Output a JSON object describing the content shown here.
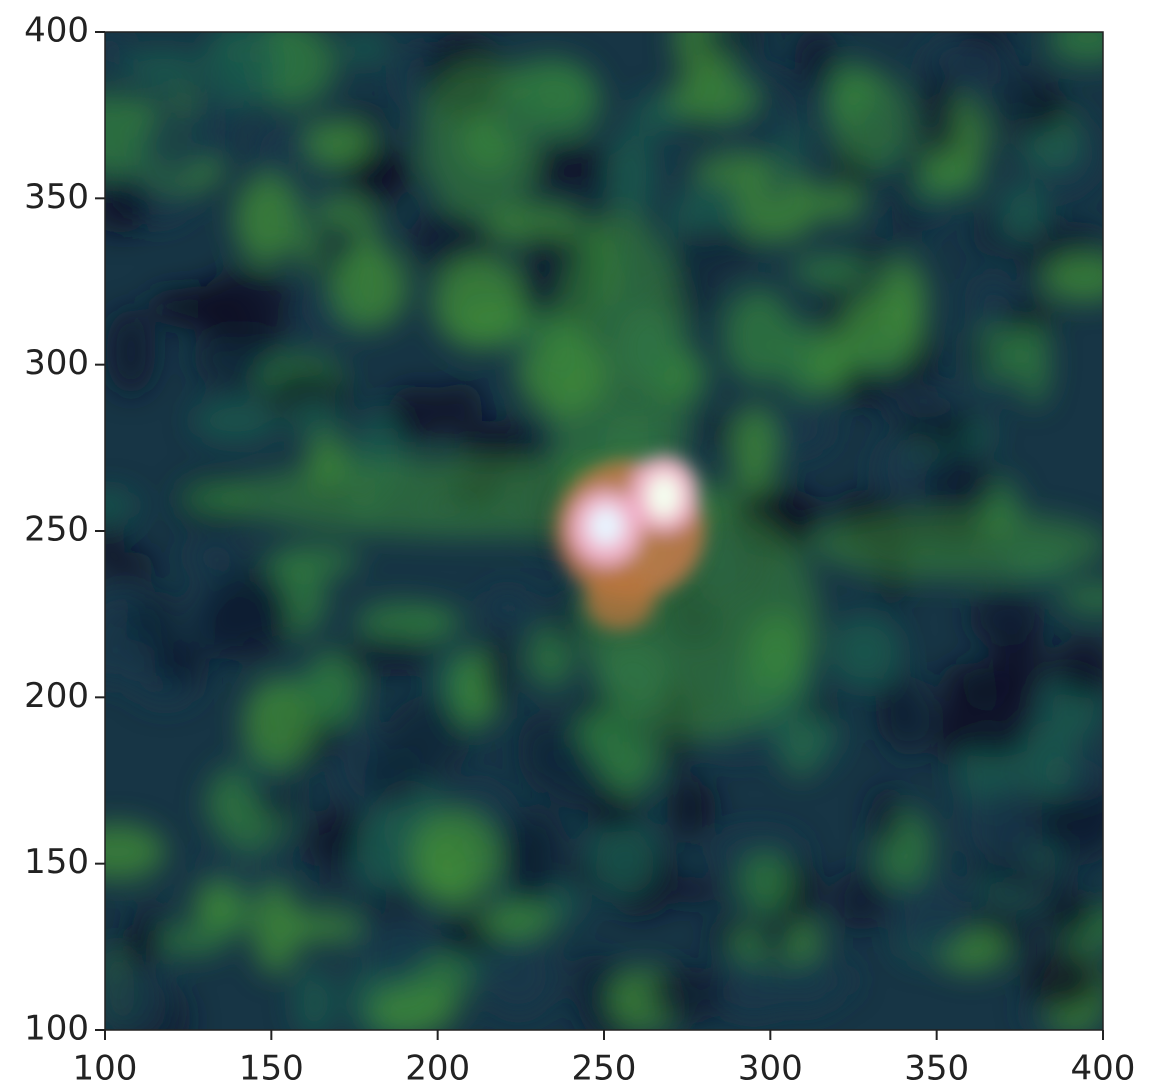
{
  "chart_data": {
    "type": "image",
    "xlim": [
      100,
      400
    ],
    "ylim": [
      100,
      400
    ],
    "xticks": [
      100,
      150,
      200,
      250,
      300,
      350,
      400
    ],
    "yticks": [
      100,
      150,
      200,
      250,
      300,
      350,
      400
    ]
  }
}
